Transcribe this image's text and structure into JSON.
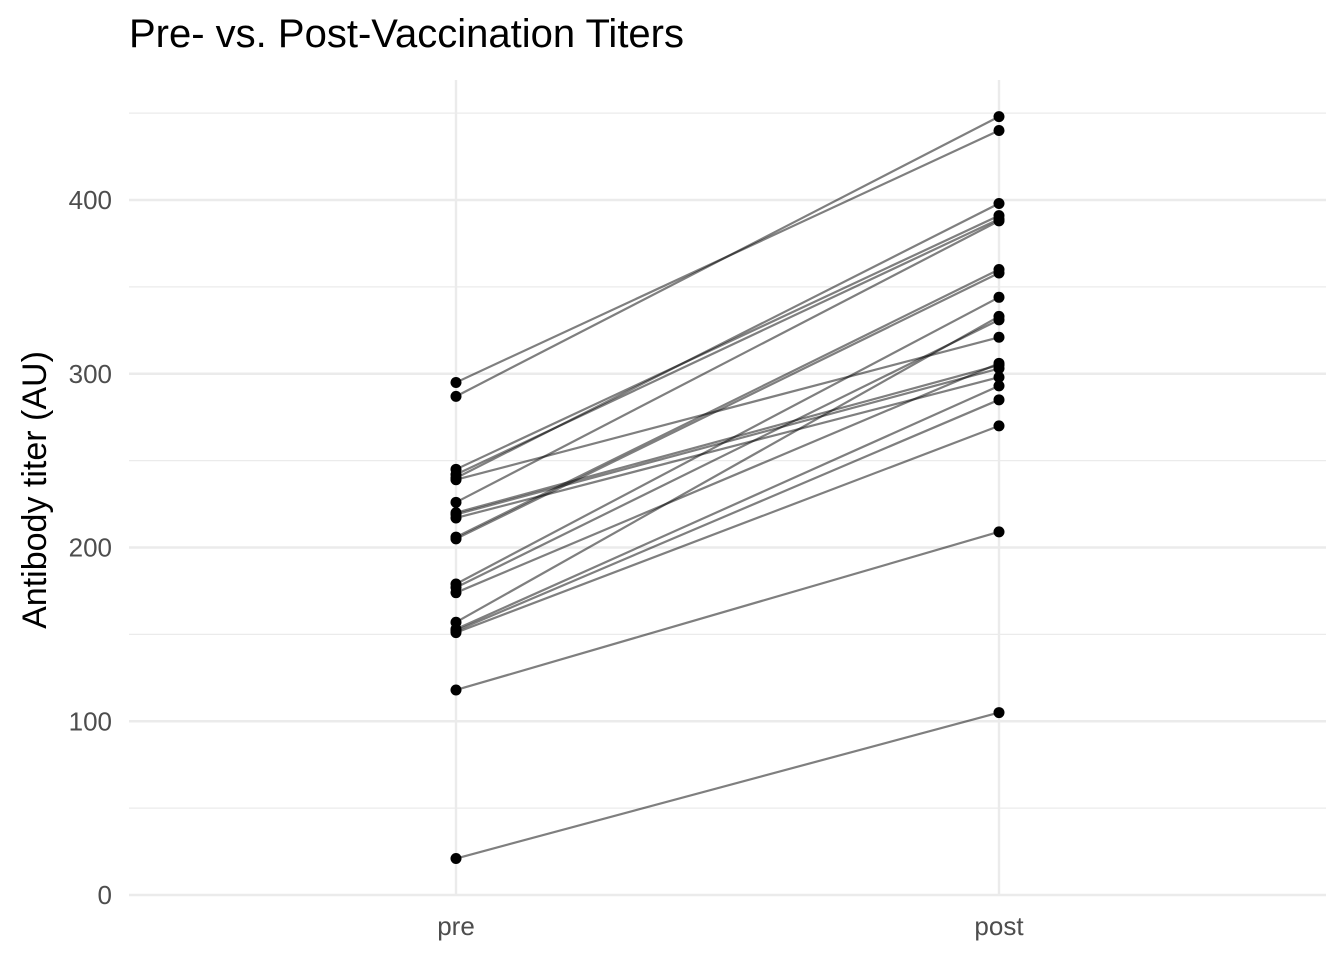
{
  "chart_data": {
    "type": "line",
    "title": "Pre- vs. Post-Vaccination Titers",
    "xlabel": "",
    "ylabel": "Antibody titer (AU)",
    "categories": [
      "pre",
      "post"
    ],
    "y_ticks": [
      "0",
      "100",
      "200",
      "300",
      "400"
    ],
    "ylim": [
      0,
      450
    ],
    "grid": true,
    "colors": {
      "line": "#000000",
      "point": "#000000",
      "grid": "#ebebeb"
    },
    "pairs": [
      {
        "pre": 295,
        "post": 440
      },
      {
        "pre": 287,
        "post": 448
      },
      {
        "pre": 245,
        "post": 391
      },
      {
        "pre": 242,
        "post": 389
      },
      {
        "pre": 240,
        "post": 398
      },
      {
        "pre": 239,
        "post": 321
      },
      {
        "pre": 226,
        "post": 388
      },
      {
        "pre": 220,
        "post": 305
      },
      {
        "pre": 219,
        "post": 303
      },
      {
        "pre": 217,
        "post": 298
      },
      {
        "pre": 206,
        "post": 360
      },
      {
        "pre": 205,
        "post": 358
      },
      {
        "pre": 179,
        "post": 344
      },
      {
        "pre": 177,
        "post": 331
      },
      {
        "pre": 174,
        "post": 306
      },
      {
        "pre": 157,
        "post": 333
      },
      {
        "pre": 153,
        "post": 293
      },
      {
        "pre": 152,
        "post": 285
      },
      {
        "pre": 151,
        "post": 270
      },
      {
        "pre": 118,
        "post": 209
      },
      {
        "pre": 21,
        "post": 105
      }
    ]
  }
}
